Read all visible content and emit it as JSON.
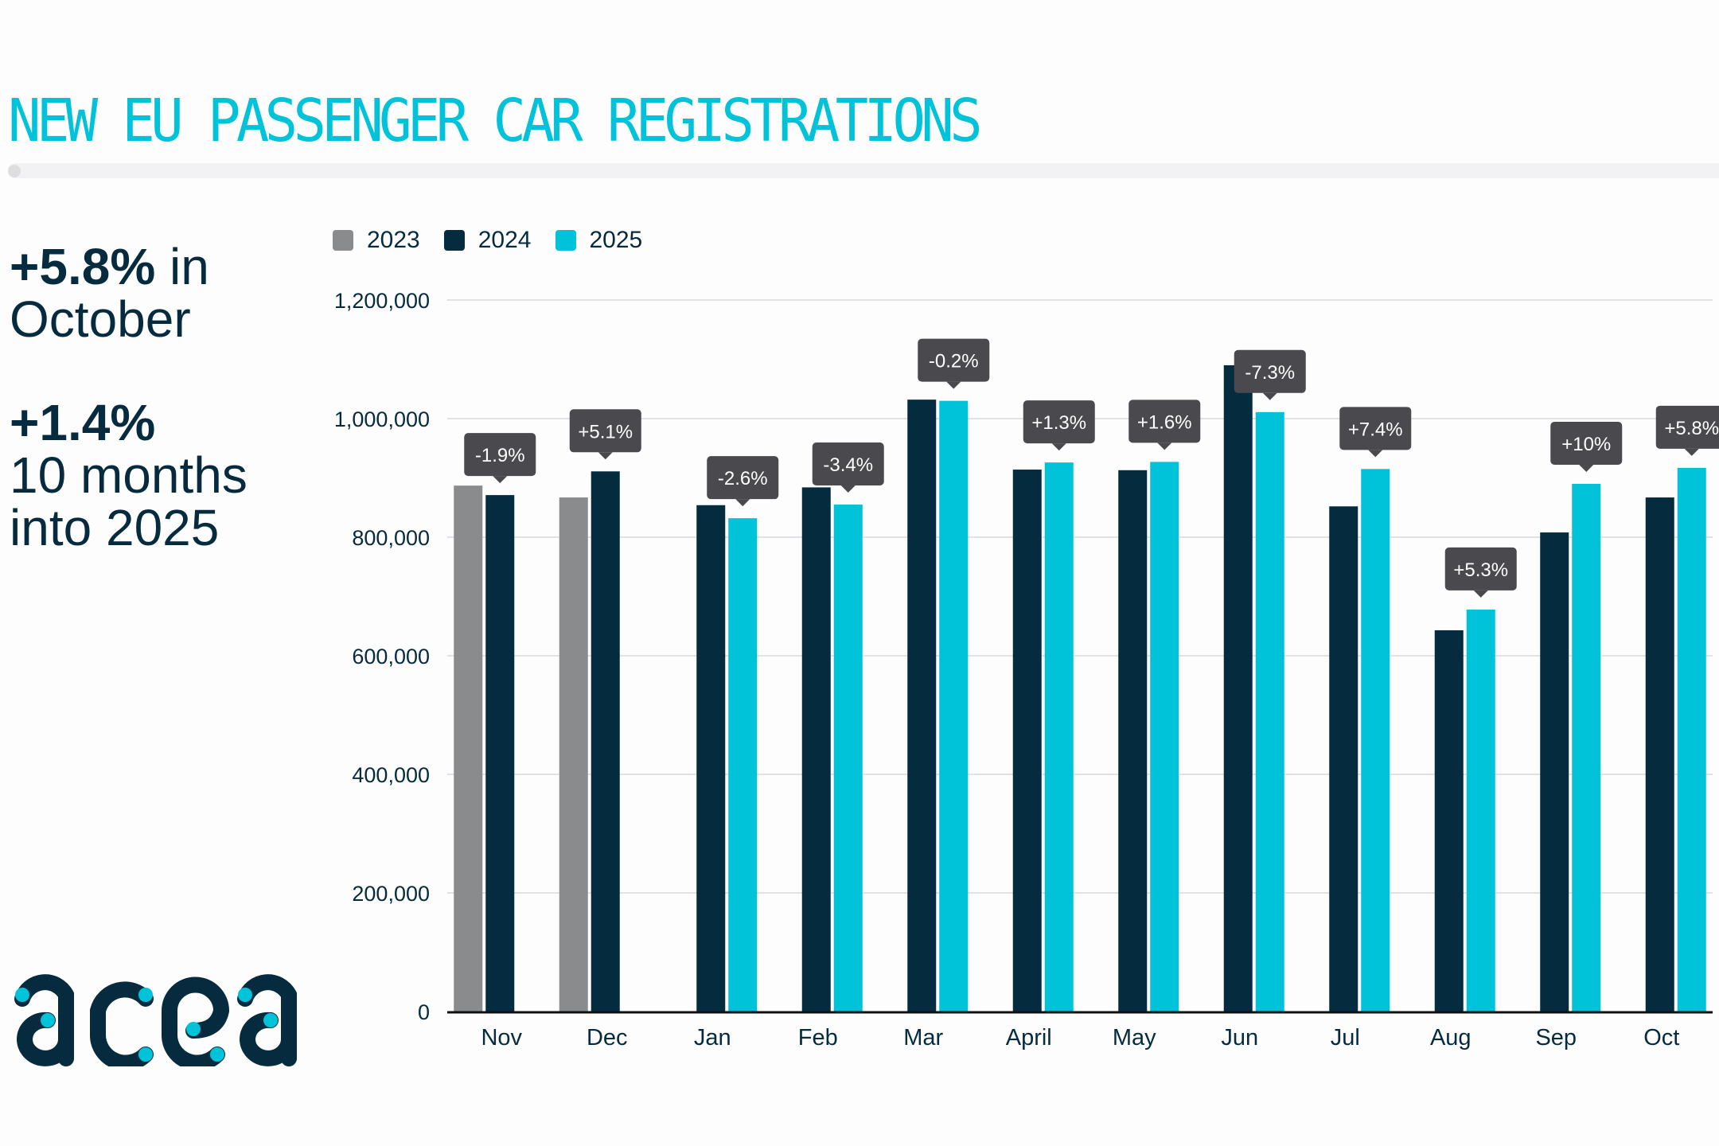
{
  "header": {
    "title": "NEW EU PASSENGER CAR REGISTRATIONS"
  },
  "kpis": [
    {
      "value": "+5.8%",
      "text_line1": " in",
      "text_line2": "October"
    },
    {
      "value": "+1.4%",
      "text_line1": "",
      "text_line2": "10 months",
      "text_line3": "into 2025"
    }
  ],
  "logo": {
    "text": "acea",
    "primary_color": "#062b3e",
    "accent_color": "#00c2d9"
  },
  "colors": {
    "2023": "#8a8b8d",
    "2024": "#052b3f",
    "2025": "#00c3da",
    "tooltip_bg": "#4a4a4e",
    "title": "#00c2d9"
  },
  "chart_data": {
    "type": "bar",
    "title": "NEW EU PASSENGER CAR REGISTRATIONS",
    "xlabel": "",
    "ylabel": "",
    "ylim": [
      0,
      1200000
    ],
    "yticks": [
      0,
      200000,
      400000,
      600000,
      800000,
      1000000,
      1200000
    ],
    "ytick_labels": [
      "0",
      "200,000",
      "400,000",
      "600,000",
      "800,000",
      "1,000,000",
      "1,200,000"
    ],
    "grid": true,
    "legend_position": "top-left",
    "categories": [
      "Nov",
      "Dec",
      "Jan",
      "Feb",
      "Mar",
      "April",
      "May",
      "Jun",
      "Jul",
      "Aug",
      "Sep",
      "Oct"
    ],
    "series": [
      {
        "name": "2023",
        "values": [
          887000,
          867000,
          null,
          null,
          null,
          null,
          null,
          null,
          null,
          null,
          null,
          null
        ]
      },
      {
        "name": "2024",
        "values": [
          871000,
          911000,
          854000,
          884000,
          1032000,
          914000,
          913000,
          1090000,
          852000,
          643000,
          808000,
          867000
        ]
      },
      {
        "name": "2025",
        "values": [
          null,
          null,
          832000,
          855000,
          1030000,
          926000,
          927000,
          1011000,
          915000,
          678000,
          890000,
          917000
        ]
      }
    ],
    "annotations": [
      "-1.9%",
      "+5.1%",
      "-2.6%",
      "-3.4%",
      "-0.2%",
      "+1.3%",
      "+1.6%",
      "-7.3%",
      "+7.4%",
      "+5.3%",
      "+10%",
      "+5.8%"
    ]
  }
}
